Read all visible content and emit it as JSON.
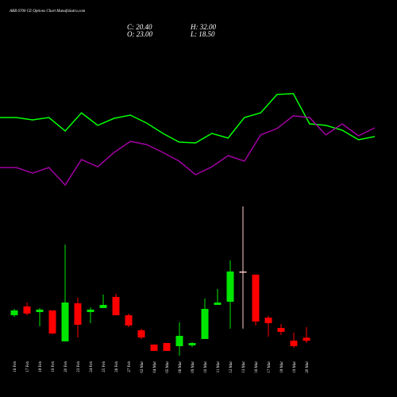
{
  "chart_data": {
    "type": "candlestick",
    "title": "ABB 6700 CE Options Chart MunafaSutra.com",
    "last_labels": [
      "C: 20.40",
      "H: 32.00",
      "O: 23.00",
      "L: 18.50"
    ],
    "categories": [
      "16 Feb",
      "17 Feb",
      "18 Feb",
      "19 Feb",
      "20 Feb",
      "23 Feb",
      "24 Feb",
      "25 Feb",
      "26 Feb",
      "27 Feb",
      "02 Mar",
      "04 Mar",
      "05 Mar",
      "06 Mar",
      "09 Mar",
      "10 Mar",
      "11 Mar",
      "12 Mar",
      "13 Mar",
      "16 Mar",
      "17 Mar",
      "18 Mar",
      "19 Mar",
      "20 Mar"
    ],
    "open": [
      42.1,
      49.6,
      44.8,
      46.2,
      19.9,
      52.3,
      44.8,
      48.2,
      57.7,
      42.1,
      29.3,
      17.2,
      18.5,
      15.8,
      16.5,
      21.9,
      50.9,
      53.6,
      79.3,
      76.6,
      40.1,
      31.3,
      20.5,
      23
    ],
    "high": [
      47.5,
      52.9,
      48.2,
      46.2,
      102.2,
      57.0,
      48.9,
      59.7,
      60.4,
      43.5,
      30.7,
      17.2,
      18.5,
      36.1,
      19.2,
      56.3,
      64.4,
      88.7,
      134.6,
      76.6,
      41.5,
      34.7,
      27.3,
      32
    ],
    "low": [
      40.8,
      42.1,
      32.7,
      25.9,
      19.9,
      23.2,
      35.4,
      48.2,
      42.1,
      32.0,
      21.9,
      11.8,
      11.8,
      7.7,
      15.1,
      21.9,
      50.9,
      30.7,
      30.7,
      33.4,
      23.9,
      25.3,
      14.5,
      18.5
    ],
    "close": [
      46.2,
      43.5,
      46.9,
      26.6,
      52.9,
      34.0,
      46.9,
      50.9,
      42.1,
      33.4,
      23.2,
      11.8,
      11.8,
      24.6,
      18.5,
      47.5,
      52.9,
      79.3,
      79.3,
      36.7,
      35.4,
      28.0,
      15.8,
      20.4
    ],
    "up_color": "#00e600",
    "down_color": "#ff0000",
    "doji_color": "#ffcccc",
    "lines": [
      {
        "color": "#00ff00",
        "values": [
          210.2,
          210.2,
          208.2,
          210.2,
          198.7,
          214.2,
          203.5,
          209.5,
          212.2,
          205.5,
          196.7,
          189.3,
          188.6,
          196.7,
          192.7,
          210.2,
          214.2,
          229.8,
          230.5,
          204.8,
          203.5,
          199.4,
          191.3,
          194.0
        ]
      },
      {
        "color": "#a000a0",
        "values": [
          167.7,
          167.7,
          163.0,
          167.7,
          152.8,
          174.4,
          168.3,
          180.5,
          189.9,
          187.2,
          180.5,
          173.1,
          161.6,
          168.3,
          177.8,
          173.1,
          195.4,
          200.8,
          211.6,
          210.2,
          195.4,
          204.8,
          194.7,
          201.4
        ]
      }
    ],
    "ylim": [
      -27.4,
      310.1
    ]
  }
}
